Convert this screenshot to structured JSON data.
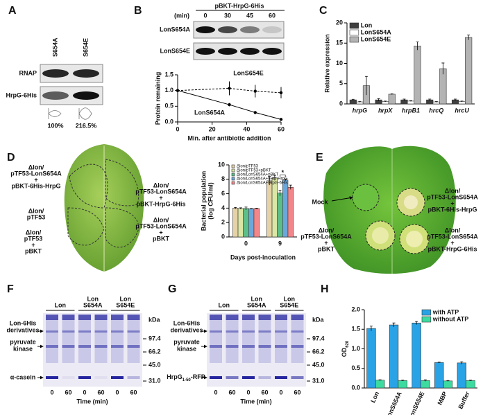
{
  "panel_letters": [
    "A",
    "B",
    "C",
    "D",
    "E",
    "F",
    "G",
    "H"
  ],
  "panel_a": {
    "columns": [
      "S654A",
      "S654E"
    ],
    "rows": [
      "RNAP",
      "HrpG-6His"
    ],
    "percentages": [
      "100%",
      "216.5%"
    ]
  },
  "panel_b_blot": {
    "construct": "pBKT-HrpG-6His",
    "time_unit": "(min)",
    "times": [
      "0",
      "30",
      "45",
      "60"
    ],
    "rows": [
      "LonS654A",
      "LonS654E"
    ]
  },
  "panel_d_leaf": {
    "labels": [
      [
        "Δlon/",
        "pTF53-LonS654A",
        "+",
        "pBKT-6His-HrpG"
      ],
      [
        "Δlon/",
        "pTF53"
      ],
      [
        "Δlon/",
        "pTF53",
        "+",
        "pBKT"
      ],
      [
        "Δlon/",
        "pTF53-LonS654A",
        "+",
        "pBKT-HrpG-6His"
      ],
      [
        "Δlon/",
        "pTF53-LonS654A",
        "+",
        "pBKT"
      ]
    ]
  },
  "panel_e": {
    "labels": [
      [
        "Mock"
      ],
      [
        "Δlon/",
        "pTF53-LonS654A",
        "+",
        "pBKT-6His-HrpG"
      ],
      [
        "Δlon/",
        "pTF53-LonS654A",
        "+",
        "pBKT"
      ],
      [
        "Δlon/",
        "pTF53-LonS654A",
        "+",
        "pBKT-HrpG-6His"
      ]
    ]
  },
  "panel_f": {
    "groups": [
      [
        "Lon"
      ],
      [
        "Lon",
        "S654A"
      ],
      [
        "Lon",
        "S654E"
      ]
    ],
    "unit": "kDa",
    "markers": [
      "97.4",
      "66.2",
      "45.0",
      "31.0"
    ],
    "band_labels": [
      [
        "Lon-6His",
        "derivatives"
      ],
      [
        "pyruvate",
        "kinase"
      ],
      [
        "α-casein"
      ]
    ],
    "time_labels": [
      "0",
      "60",
      "0",
      "60",
      "0",
      "60"
    ],
    "time_title": "Time (min)"
  },
  "panel_g": {
    "groups": [
      [
        "Lon"
      ],
      [
        "Lon",
        "S654A"
      ],
      [
        "Lon",
        "S654E"
      ]
    ],
    "unit": "kDa",
    "markers": [
      "97.4",
      "66.2",
      "45.0",
      "31.0"
    ],
    "band_labels": [
      [
        "Lon-6His",
        "derivatives"
      ],
      [
        "pyruvate",
        "kinase"
      ]
    ],
    "substrate_label": {
      "main": "HrpG",
      "sub": "1-50",
      "rest": "-RFP"
    },
    "time_labels": [
      "0",
      "60",
      "0",
      "60",
      "0",
      "60"
    ],
    "time_title": "Time (min)"
  },
  "chart_data": [
    {
      "type": "line",
      "xlabel": "Min. after antibiotic addition",
      "ylabel": "Protein remaining",
      "x": [
        0,
        30,
        45,
        60
      ],
      "xlim": [
        0,
        60
      ],
      "xticks": [
        0,
        20,
        40,
        60
      ],
      "ylim": [
        0,
        1.5
      ],
      "yticks": [
        {
          "value": 0,
          "label": "0.0"
        },
        0.5,
        {
          "value": 1,
          "label": "1.0"
        },
        1.5
      ],
      "series": [
        {
          "name": "LonS654A",
          "color": "#000000",
          "line_style": "solid",
          "values": [
            1,
            0.55,
            0.3,
            0.08
          ],
          "errors": [
            0,
            0.05,
            0.04,
            0.01
          ]
        },
        {
          "name": "LonS654E",
          "color": "#000000",
          "line_style": "dashed",
          "values": [
            1,
            1.07,
            0.98,
            0.93
          ],
          "errors": [
            0,
            0.22,
            0.2,
            0.18
          ]
        }
      ]
    },
    {
      "type": "bar",
      "ylabel": "Relative  expression",
      "categories": [
        "hrpG",
        "hrpX",
        "hrpB1",
        "hrcQ",
        "hrcU"
      ],
      "ylim": [
        0,
        20
      ],
      "yticks": [
        0,
        5,
        10,
        15,
        20
      ],
      "legend": "upper-left",
      "series": [
        {
          "name": "Lon",
          "color": "#3f3f3f",
          "values": [
            1,
            1,
            1,
            1,
            1
          ],
          "errors": [
            0.15,
            0.3,
            0.2,
            0.2,
            0.2
          ]
        },
        {
          "name": "LonS654A",
          "color": "#ffffff",
          "values": [
            0.5,
            0.6,
            0.7,
            0.5,
            0.6
          ],
          "errors": [
            0.1,
            0.1,
            0.1,
            0.1,
            0.1
          ]
        },
        {
          "name": "LonS654E",
          "color": "#b3b3b3",
          "values": [
            4.5,
            2.4,
            14.3,
            8.7,
            16.4
          ],
          "errors": [
            2.3,
            0.1,
            1.0,
            1.4,
            0.6
          ]
        }
      ]
    },
    {
      "type": "bar",
      "xlabel": "Days post-inoculation",
      "ylabel": [
        "Bacterial population",
        "(log CFU/ml)"
      ],
      "categories": [
        "0",
        "9"
      ],
      "ylim": [
        0,
        10
      ],
      "yticks": [
        0,
        2,
        4,
        6,
        8,
        10
      ],
      "legend": "upper-left",
      "annotation": "*",
      "series": [
        {
          "name": "Δlon/pTF53",
          "color": "#e6d2a6",
          "values": [
            4.0,
            7.8
          ],
          "errors": [
            0.1,
            0.6
          ]
        },
        {
          "name": "Δlon/pTF53+pBKT",
          "color": "#dbe6a4",
          "values": [
            3.95,
            8.2
          ],
          "errors": [
            0.1,
            0.35
          ]
        },
        {
          "name": "Δlon/LonS654A+pBKT",
          "color": "#5cbf8a",
          "values": [
            3.95,
            6.1
          ],
          "errors": [
            0.2,
            0.4
          ]
        },
        {
          "name": "Δlon/LonS654A+6His-HrpG",
          "color": "#6aa8dc",
          "values": [
            3.9,
            7.9
          ],
          "errors": [
            0.05,
            0.15
          ]
        },
        {
          "name": "Δlon/LonS654A+HrpG-6His",
          "color": "#f2868a",
          "values": [
            3.95,
            6.9
          ],
          "errors": [
            0.05,
            0.3
          ]
        }
      ]
    },
    {
      "type": "bar",
      "ylabel": {
        "main": "OD",
        "sub": "620"
      },
      "categories": [
        "Lon",
        "LonS654A",
        "LonS654E",
        "MBP",
        "Buffer"
      ],
      "ylim": [
        0,
        2.0
      ],
      "yticks": [
        {
          "value": 0,
          "label": "0.0"
        },
        0.5,
        {
          "value": 1,
          "label": "1.0"
        },
        1.5,
        {
          "value": 2,
          "label": "2.0"
        }
      ],
      "legend": "upper-right",
      "series": [
        {
          "name": "with ATP",
          "color": "#29a3e6",
          "values": [
            1.52,
            1.61,
            1.66,
            0.65,
            0.64
          ],
          "errors": [
            0.06,
            0.05,
            0.04,
            0.01,
            0.03
          ]
        },
        {
          "name": "without ATP",
          "color": "#3ddba0",
          "values": [
            0.2,
            0.19,
            0.19,
            0.18,
            0.19
          ],
          "errors": [
            0.01,
            0.01,
            0.02,
            0.01,
            0.01
          ]
        }
      ]
    }
  ]
}
